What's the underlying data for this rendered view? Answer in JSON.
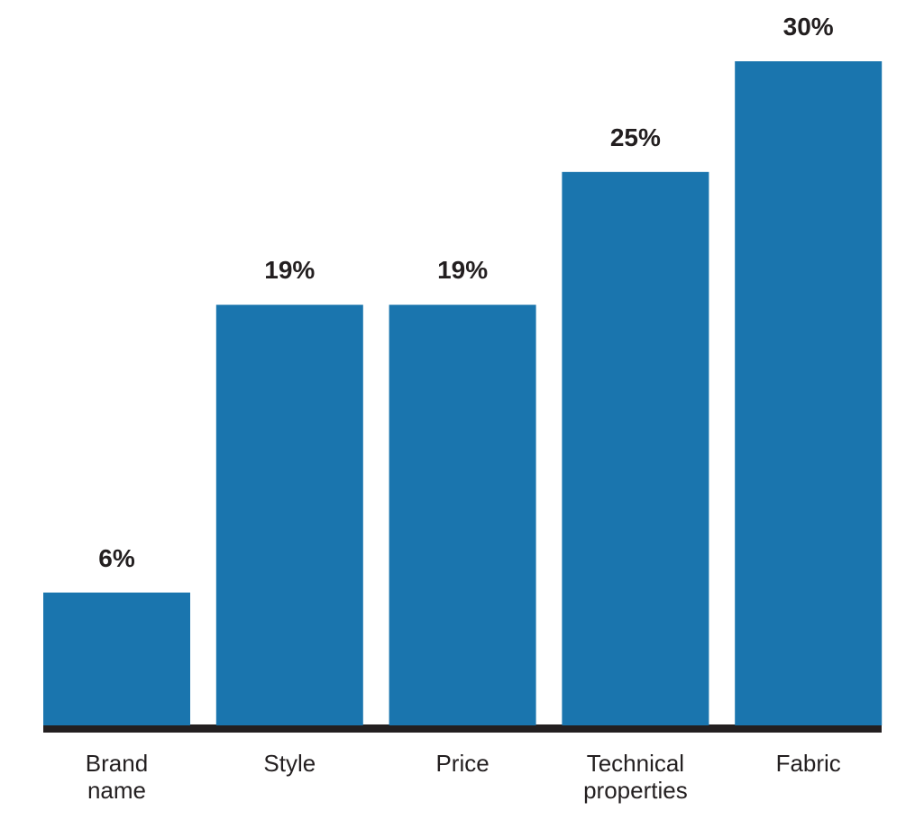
{
  "chart_data": {
    "type": "bar",
    "categories": [
      "Brand name",
      "Style",
      "Price",
      "Technical properties",
      "Fabric"
    ],
    "values": [
      6,
      19,
      19,
      25,
      30
    ],
    "value_labels": [
      "6%",
      "19%",
      "19%",
      "25%",
      "30%"
    ],
    "color": "#1a75ae"
  }
}
